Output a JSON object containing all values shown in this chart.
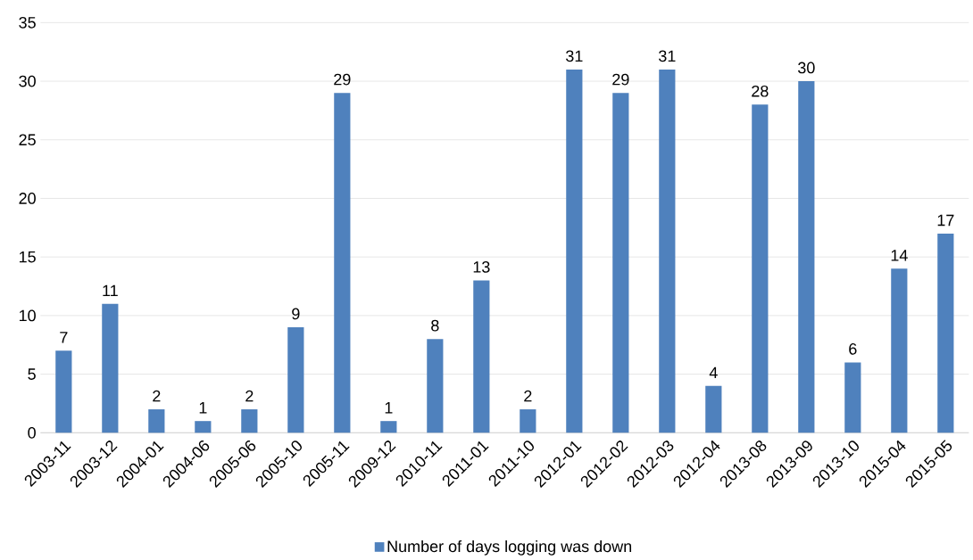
{
  "chart_data": {
    "type": "bar",
    "categories": [
      "2003-11",
      "2003-12",
      "2004-01",
      "2004-06",
      "2005-06",
      "2005-10",
      "2005-11",
      "2009-12",
      "2010-11",
      "2011-01",
      "2011-10",
      "2012-01",
      "2012-02",
      "2012-03",
      "2012-04",
      "2013-08",
      "2013-09",
      "2013-10",
      "2015-04",
      "2015-05"
    ],
    "series": [
      {
        "name": "Number of days logging was down",
        "color": "#4f81bd",
        "values": [
          7,
          11,
          2,
          1,
          2,
          9,
          29,
          1,
          8,
          13,
          2,
          31,
          29,
          31,
          4,
          28,
          30,
          6,
          14,
          17
        ]
      }
    ],
    "ylim": [
      0,
      35
    ],
    "yticks": [
      0,
      5,
      10,
      15,
      20,
      25,
      30,
      35
    ],
    "grid": "y",
    "legend": "bottom",
    "data_labels": true
  }
}
